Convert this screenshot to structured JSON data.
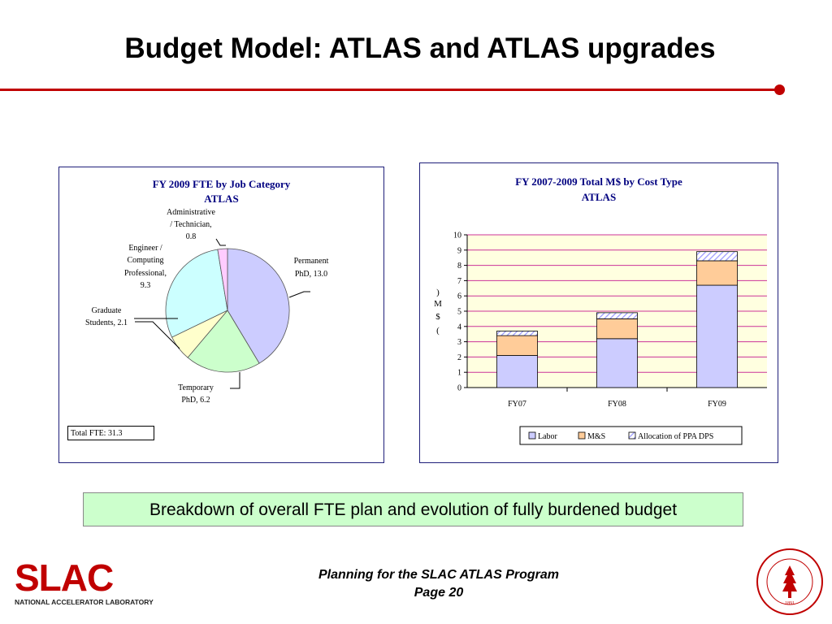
{
  "slide": {
    "title": "Budget Model: ATLAS and ATLAS upgrades",
    "accent_color": "#c00000"
  },
  "pie_chart": {
    "title": "FY 2009 FTE by Job Category",
    "subtitle": "ATLAS",
    "total_label": "Total FTE: 31.3",
    "labels": {
      "admin": [
        "Administrative",
        "/ Technician,",
        "0.8"
      ],
      "engineer": [
        "Engineer /",
        "Computing",
        "Professional,",
        "9.3"
      ],
      "grad": [
        "Graduate",
        "Students,  2.1"
      ],
      "temp": [
        "Temporary",
        "PhD,  6.2"
      ],
      "perm": [
        "Permanent",
        "PhD,  13.0"
      ]
    }
  },
  "bar_chart": {
    "title": "FY 2007-2009 Total M$ by Cost Type",
    "subtitle": "ATLAS",
    "ylabel_chars": [
      ")",
      "M",
      "$",
      "("
    ],
    "legend": [
      "Labor",
      "M&S",
      "Allocation of PPA DPS"
    ]
  },
  "chart_data": [
    {
      "type": "pie",
      "title": "FY 2009 FTE by Job Category",
      "subtitle": "ATLAS",
      "categories": [
        "Permanent PhD",
        "Temporary PhD",
        "Graduate Students",
        "Engineer / Computing Professional",
        "Administrative / Technician"
      ],
      "values": [
        13.0,
        6.2,
        2.1,
        9.3,
        0.8
      ],
      "colors": [
        "#ccccff",
        "#ccffcc",
        "#ffffcc",
        "#ccffff",
        "#ffccff"
      ],
      "annotations": [
        "Total FTE: 31.3"
      ]
    },
    {
      "type": "bar",
      "stacked": true,
      "title": "FY 2007-2009 Total M$ by Cost Type",
      "subtitle": "ATLAS",
      "categories": [
        "FY07",
        "FY08",
        "FY09"
      ],
      "series": [
        {
          "name": "Labor",
          "values": [
            2.1,
            3.2,
            6.7
          ],
          "color": "#ccccff"
        },
        {
          "name": "M&S",
          "values": [
            1.3,
            1.3,
            1.6
          ],
          "color": "#ffcc99"
        },
        {
          "name": "Allocation of PPA DPS",
          "values": [
            0.3,
            0.4,
            0.6
          ],
          "color": "#ccccff",
          "pattern": "hatched"
        }
      ],
      "ylabel": "(M$)",
      "ylim": [
        0,
        10
      ],
      "yticks": [
        0,
        1,
        2,
        3,
        4,
        5,
        6,
        7,
        8,
        9,
        10
      ],
      "grid": true,
      "gridline_color": "#cc3399",
      "plot_background": "#ffffe0",
      "legend_position": "bottom"
    }
  ],
  "caption": "Breakdown of overall FTE plan and evolution of fully burdened budget",
  "footer": {
    "line1": "Planning for the SLAC ATLAS Program",
    "line2": "Page 20"
  },
  "logo": {
    "name": "SLAC",
    "subtitle": "NATIONAL ACCELERATOR LABORATORY"
  },
  "seal": {
    "text": "LELAND STANFORD JUNIOR UNIVERSITY",
    "year": "1891"
  }
}
